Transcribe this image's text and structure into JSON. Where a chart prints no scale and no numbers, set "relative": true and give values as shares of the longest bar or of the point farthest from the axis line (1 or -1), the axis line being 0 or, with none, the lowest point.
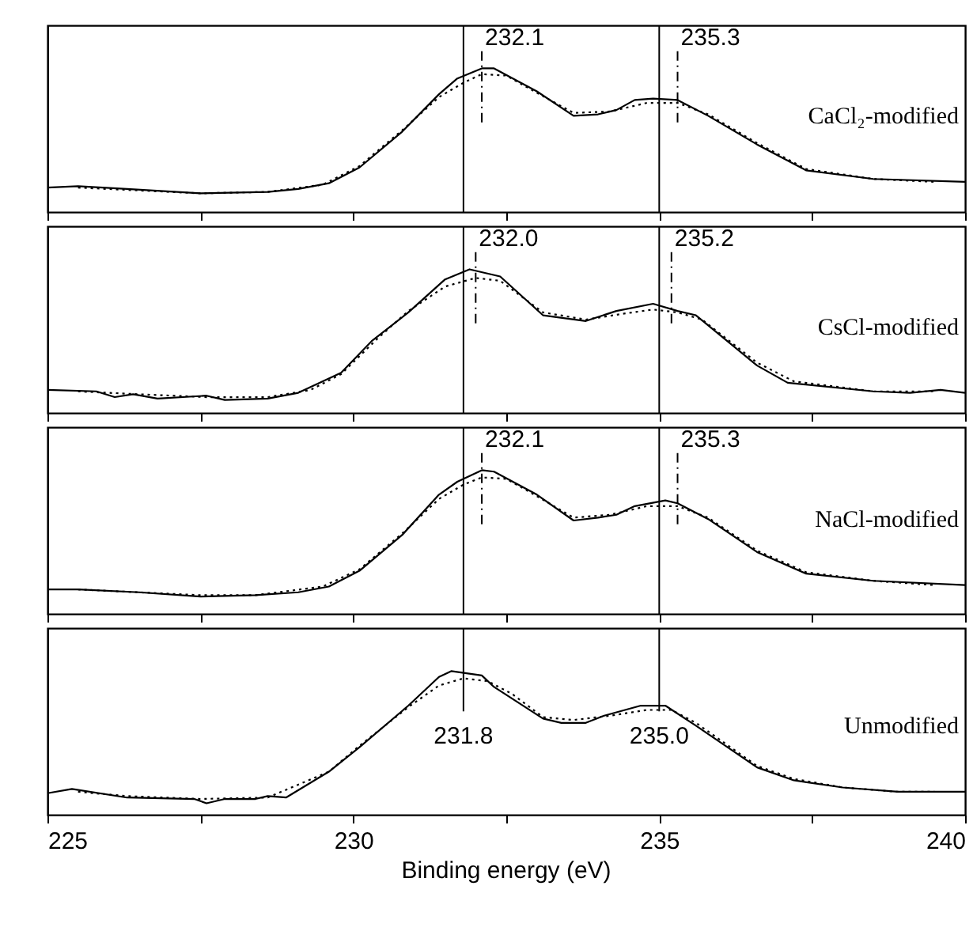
{
  "chart_data": [
    {
      "type": "line",
      "relative": true,
      "xlim": [
        225,
        240
      ],
      "xticks": [
        225,
        {
          "value": 227.5,
          "label": null
        },
        230,
        {
          "value": 232.5,
          "label": null
        },
        235,
        {
          "value": 237.5,
          "label": null
        },
        240
      ],
      "tick_labels": false,
      "grid": false,
      "legend": false,
      "marker": "none",
      "series": [
        {
          "name": "CaCl₂-modified",
          "color": "#000000",
          "line_style": "solid",
          "x": [
            225.0,
            225.5,
            226.3,
            227.5,
            228.6,
            229.1,
            229.6,
            230.1,
            230.8,
            231.4,
            231.7,
            232.1,
            232.3,
            233.0,
            233.6,
            234.0,
            234.3,
            234.6,
            234.9,
            235.3,
            235.8,
            236.6,
            237.4,
            238.5,
            240.0
          ],
          "values": [
            0.17,
            0.18,
            0.16,
            0.13,
            0.14,
            0.16,
            0.2,
            0.31,
            0.56,
            0.82,
            0.93,
            1.0,
            1.0,
            0.84,
            0.67,
            0.68,
            0.71,
            0.78,
            0.79,
            0.78,
            0.67,
            0.47,
            0.29,
            0.23,
            0.21
          ]
        },
        {
          "color": "#000000",
          "line_style": "dotted",
          "x": [
            225.5,
            226.5,
            227.5,
            228.6,
            229.5,
            230.1,
            230.8,
            231.4,
            231.8,
            232.1,
            232.5,
            233.0,
            233.6,
            234.2,
            234.8,
            235.3,
            235.8,
            236.6,
            237.4,
            238.5,
            239.5
          ],
          "values": [
            0.17,
            0.15,
            0.13,
            0.14,
            0.19,
            0.32,
            0.57,
            0.8,
            0.9,
            0.96,
            0.95,
            0.83,
            0.69,
            0.7,
            0.76,
            0.76,
            0.68,
            0.48,
            0.3,
            0.23,
            0.21
          ]
        }
      ],
      "ref_lines": [
        {
          "axis": "x",
          "value": 231.8,
          "label": null,
          "color": "#000000",
          "line_style": "solid"
        },
        {
          "axis": "x",
          "value": 235.0,
          "label": null,
          "color": "#000000",
          "line_style": "solid"
        },
        {
          "axis": "x",
          "value": 232.1,
          "label": "232.1",
          "color": "#000000",
          "line_style": "dashed"
        },
        {
          "axis": "x",
          "value": 235.3,
          "label": "235.3",
          "color": "#000000",
          "line_style": "dashed"
        }
      ]
    },
    {
      "type": "line",
      "relative": true,
      "xlim": [
        225,
        240
      ],
      "xticks": [
        225,
        {
          "value": 227.5,
          "label": null
        },
        230,
        {
          "value": 232.5,
          "label": null
        },
        235,
        {
          "value": 237.5,
          "label": null
        },
        240
      ],
      "tick_labels": false,
      "grid": false,
      "legend": false,
      "marker": "none",
      "series": [
        {
          "name": "CsCl-modified",
          "color": "#000000",
          "line_style": "solid",
          "x": [
            225.0,
            225.8,
            226.1,
            226.4,
            226.8,
            227.6,
            227.9,
            228.6,
            229.1,
            229.8,
            230.3,
            230.9,
            231.5,
            231.9,
            232.4,
            233.1,
            233.8,
            234.3,
            234.9,
            235.3,
            235.6,
            236.6,
            237.1,
            238.5,
            239.1,
            239.6,
            240.0
          ],
          "values": [
            0.16,
            0.15,
            0.11,
            0.13,
            0.1,
            0.12,
            0.09,
            0.1,
            0.14,
            0.28,
            0.5,
            0.7,
            0.93,
            1.0,
            0.95,
            0.68,
            0.64,
            0.71,
            0.76,
            0.71,
            0.68,
            0.33,
            0.21,
            0.15,
            0.14,
            0.16,
            0.14
          ]
        },
        {
          "color": "#000000",
          "line_style": "dotted",
          "x": [
            225.5,
            226.5,
            227.6,
            228.6,
            229.3,
            229.8,
            230.4,
            230.9,
            231.5,
            232.0,
            232.4,
            233.1,
            233.8,
            234.4,
            234.9,
            235.3,
            235.7,
            236.6,
            237.2,
            238.5,
            239.5
          ],
          "values": [
            0.15,
            0.13,
            0.11,
            0.11,
            0.16,
            0.27,
            0.52,
            0.71,
            0.88,
            0.94,
            0.92,
            0.7,
            0.65,
            0.69,
            0.72,
            0.7,
            0.65,
            0.35,
            0.22,
            0.15,
            0.15
          ]
        }
      ],
      "ref_lines": [
        {
          "axis": "x",
          "value": 231.8,
          "label": null,
          "color": "#000000",
          "line_style": "solid"
        },
        {
          "axis": "x",
          "value": 235.0,
          "label": null,
          "color": "#000000",
          "line_style": "solid"
        },
        {
          "axis": "x",
          "value": 232.0,
          "label": "232.0",
          "color": "#000000",
          "line_style": "dashed"
        },
        {
          "axis": "x",
          "value": 235.2,
          "label": "235.2",
          "color": "#000000",
          "line_style": "dashed"
        }
      ]
    },
    {
      "type": "line",
      "relative": true,
      "xlim": [
        225,
        240
      ],
      "xticks": [
        225,
        {
          "value": 227.5,
          "label": null
        },
        230,
        {
          "value": 232.5,
          "label": null
        },
        235,
        {
          "value": 237.5,
          "label": null
        },
        240
      ],
      "tick_labels": false,
      "grid": false,
      "legend": false,
      "marker": "none",
      "series": [
        {
          "name": "NaCl-modified",
          "color": "#000000",
          "line_style": "solid",
          "x": [
            225.0,
            225.5,
            226.5,
            227.5,
            228.4,
            229.1,
            229.6,
            230.1,
            230.8,
            231.4,
            231.7,
            232.1,
            232.3,
            233.0,
            233.6,
            234.0,
            234.3,
            234.6,
            235.1,
            235.3,
            235.8,
            236.6,
            237.4,
            238.5,
            240.0
          ],
          "values": [
            0.17,
            0.17,
            0.15,
            0.12,
            0.13,
            0.15,
            0.19,
            0.3,
            0.55,
            0.83,
            0.92,
            1.0,
            0.99,
            0.83,
            0.65,
            0.67,
            0.69,
            0.75,
            0.79,
            0.77,
            0.66,
            0.43,
            0.28,
            0.23,
            0.2
          ]
        },
        {
          "color": "#000000",
          "line_style": "dotted",
          "x": [
            225.5,
            226.5,
            227.5,
            228.4,
            229.5,
            230.1,
            230.8,
            231.4,
            231.8,
            232.1,
            232.5,
            233.0,
            233.6,
            234.2,
            234.8,
            235.3,
            235.8,
            236.6,
            237.4,
            238.5,
            239.5
          ],
          "values": [
            0.17,
            0.15,
            0.13,
            0.13,
            0.19,
            0.31,
            0.56,
            0.8,
            0.9,
            0.95,
            0.94,
            0.82,
            0.67,
            0.69,
            0.75,
            0.75,
            0.67,
            0.44,
            0.29,
            0.23,
            0.2
          ]
        }
      ],
      "ref_lines": [
        {
          "axis": "x",
          "value": 231.8,
          "label": null,
          "color": "#000000",
          "line_style": "solid"
        },
        {
          "axis": "x",
          "value": 235.0,
          "label": null,
          "color": "#000000",
          "line_style": "solid"
        },
        {
          "axis": "x",
          "value": 232.1,
          "label": "232.1",
          "color": "#000000",
          "line_style": "dashed"
        },
        {
          "axis": "x",
          "value": 235.3,
          "label": "235.3",
          "color": "#000000",
          "line_style": "dashed"
        }
      ]
    },
    {
      "type": "line",
      "relative": true,
      "xlim": [
        225,
        240
      ],
      "xticks": [
        225,
        {
          "value": 227.5,
          "label": null
        },
        230,
        {
          "value": 232.5,
          "label": null
        },
        235,
        {
          "value": 237.5,
          "label": null
        },
        240
      ],
      "tick_labels": "x",
      "xlabel": "Binding energy (eV)",
      "grid": false,
      "legend": false,
      "marker": "none",
      "series": [
        {
          "name": "Unmodified",
          "color": "#000000",
          "line_style": "solid",
          "x": [
            225.0,
            225.4,
            226.3,
            227.4,
            227.6,
            227.9,
            228.4,
            228.6,
            228.9,
            229.6,
            230.1,
            230.9,
            231.4,
            231.6,
            232.1,
            232.3,
            233.1,
            233.4,
            233.8,
            234.1,
            234.7,
            235.1,
            235.6,
            236.6,
            237.2,
            238.0,
            238.9,
            240.0
          ],
          "values": [
            0.15,
            0.18,
            0.12,
            0.11,
            0.08,
            0.11,
            0.11,
            0.13,
            0.12,
            0.3,
            0.47,
            0.76,
            0.96,
            1.0,
            0.97,
            0.89,
            0.67,
            0.64,
            0.64,
            0.69,
            0.76,
            0.76,
            0.62,
            0.33,
            0.24,
            0.19,
            0.16,
            0.16
          ]
        },
        {
          "color": "#000000",
          "line_style": "dotted",
          "x": [
            225.5,
            226.3,
            227.5,
            228.6,
            229.6,
            230.1,
            230.9,
            231.4,
            231.8,
            232.2,
            232.6,
            233.1,
            233.6,
            234.2,
            234.8,
            235.2,
            235.6,
            236.6,
            237.2,
            238.0,
            238.9,
            239.5
          ],
          "values": [
            0.16,
            0.13,
            0.11,
            0.12,
            0.3,
            0.48,
            0.75,
            0.9,
            0.95,
            0.93,
            0.84,
            0.68,
            0.66,
            0.69,
            0.73,
            0.73,
            0.64,
            0.34,
            0.25,
            0.19,
            0.16,
            0.16
          ]
        }
      ],
      "ref_lines": [
        {
          "axis": "x",
          "value": 231.8,
          "label": "231.8",
          "color": "#000000",
          "line_style": "solid"
        },
        {
          "axis": "x",
          "value": 235.0,
          "label": "235.0",
          "color": "#000000",
          "line_style": "solid"
        }
      ]
    }
  ]
}
